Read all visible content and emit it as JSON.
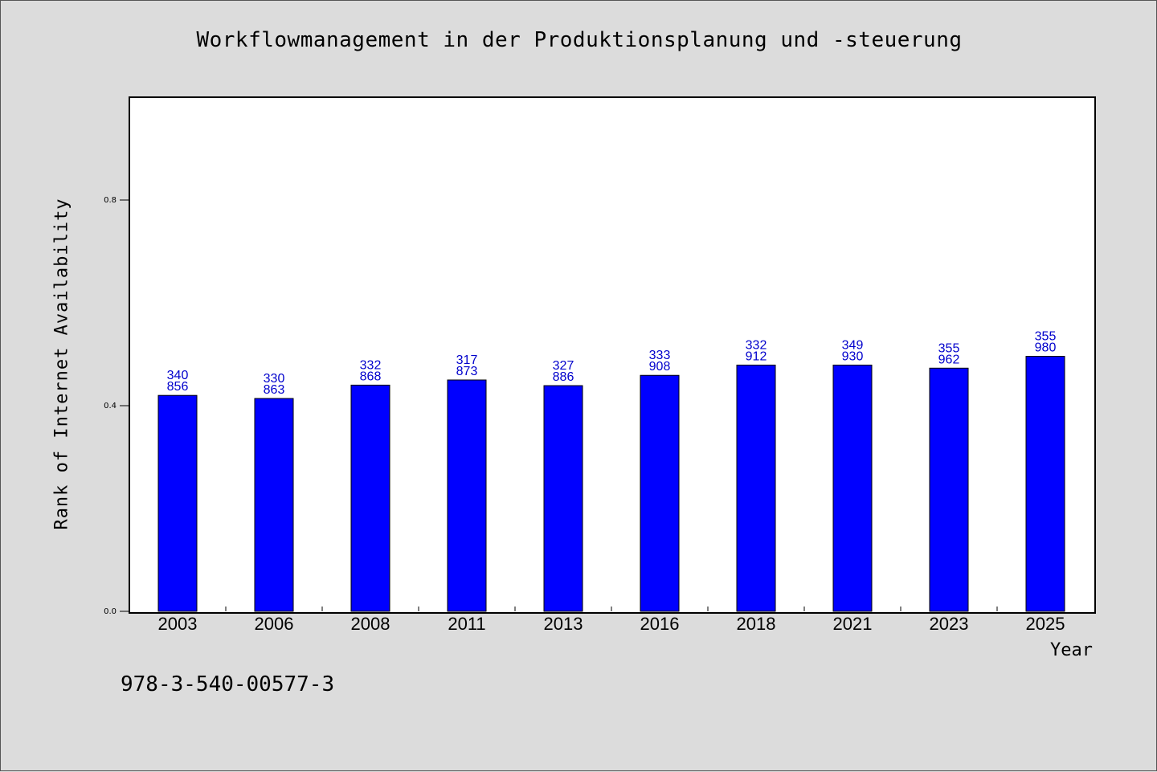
{
  "chart_data": {
    "type": "bar",
    "title": "Workflowmanagement in der Produktionsplanung und -steuerung",
    "xlabel": "Year",
    "ylabel": "Rank of Internet Availability",
    "categories": [
      "2003",
      "2006",
      "2008",
      "2011",
      "2013",
      "2016",
      "2018",
      "2021",
      "2023",
      "2025"
    ],
    "values": [
      0.42,
      0.414,
      0.44,
      0.45,
      0.439,
      0.459,
      0.479,
      0.479,
      0.473,
      0.496
    ],
    "data_labels": [
      [
        "340",
        "856"
      ],
      [
        "330",
        "863"
      ],
      [
        "332",
        "868"
      ],
      [
        "317",
        "873"
      ],
      [
        "327",
        "886"
      ],
      [
        "333",
        "908"
      ],
      [
        "332",
        "912"
      ],
      [
        "349",
        "930"
      ],
      [
        "355",
        "962"
      ],
      [
        "355",
        "980"
      ]
    ],
    "yticks": [
      "0.0",
      "0.4",
      "0.8"
    ],
    "ylim": [
      0,
      1.0
    ],
    "grid": false,
    "bar_color": "#0000ff",
    "label_color": "#0000cc"
  },
  "footer": {
    "isbn": "978-3-540-00577-3"
  }
}
